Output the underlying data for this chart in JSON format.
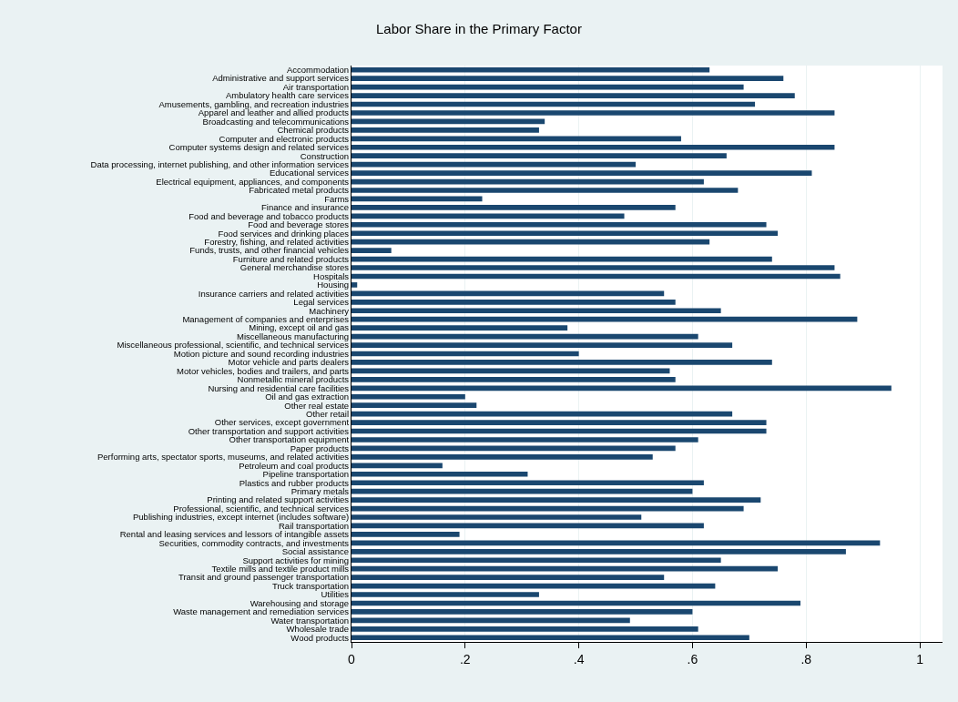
{
  "chart_data": {
    "type": "bar",
    "orientation": "horizontal",
    "title": "Labor Share in the Primary Factor",
    "color": "#1a476f",
    "categories": [
      "Accommodation",
      "Administrative and support services",
      "Air transportation",
      "Ambulatory health care services",
      "Amusements, gambling, and recreation industries",
      "Apparel and leather and allied products",
      "Broadcasting and telecommunications",
      "Chemical products",
      "Computer and electronic products",
      "Computer systems design and related services",
      "Construction",
      "Data processing, internet publishing, and other information services",
      "Educational services",
      "Electrical equipment, appliances, and components",
      "Fabricated metal products",
      "Farms",
      "Finance and insurance",
      "Food and beverage and tobacco products",
      "Food and beverage stores",
      "Food services and drinking places",
      "Forestry, fishing, and related activities",
      "Funds, trusts, and other financial vehicles",
      "Furniture and related products",
      "General merchandise stores",
      "Hospitals",
      "Housing",
      "Insurance carriers and related activities",
      "Legal services",
      "Machinery",
      "Management of companies and enterprises",
      "Mining, except oil and gas",
      "Miscellaneous manufacturing",
      "Miscellaneous professional, scientific, and technical services",
      "Motion picture and sound recording industries",
      "Motor vehicle and parts dealers",
      "Motor vehicles, bodies and trailers, and parts",
      "Nonmetallic mineral products",
      "Nursing and residential care facilities",
      "Oil and gas extraction",
      "Other real estate",
      "Other retail",
      "Other services, except government",
      "Other transportation and support activities",
      "Other transportation equipment",
      "Paper products",
      "Performing arts, spectator sports, museums, and related activities",
      "Petroleum and coal products",
      "Pipeline transportation",
      "Plastics and rubber products",
      "Primary metals",
      "Printing and related support activities",
      "Professional, scientific, and technical services",
      "Publishing industries, except internet (includes software)",
      "Rail transportation",
      "Rental and leasing services and lessors of intangible assets",
      "Securities, commodity contracts, and investments",
      "Social assistance",
      "Support activities for mining",
      "Textile mills and textile product mills",
      "Transit and ground passenger transportation",
      "Truck transportation",
      "Utilities",
      "Warehousing and storage",
      "Waste management and remediation services",
      "Water transportation",
      "Wholesale trade",
      "Wood products"
    ],
    "values": [
      0.63,
      0.76,
      0.69,
      0.78,
      0.71,
      0.85,
      0.34,
      0.33,
      0.58,
      0.85,
      0.66,
      0.5,
      0.81,
      0.62,
      0.68,
      0.23,
      0.57,
      0.48,
      0.73,
      0.75,
      0.63,
      0.07,
      0.74,
      0.85,
      0.86,
      0.01,
      0.55,
      0.57,
      0.65,
      0.89,
      0.38,
      0.61,
      0.67,
      0.4,
      0.74,
      0.56,
      0.57,
      0.95,
      0.2,
      0.22,
      0.67,
      0.73,
      0.73,
      0.61,
      0.57,
      0.53,
      0.16,
      0.31,
      0.62,
      0.6,
      0.72,
      0.69,
      0.51,
      0.62,
      0.19,
      0.93,
      0.87,
      0.65,
      0.75,
      0.55,
      0.64,
      0.33,
      0.79,
      0.6,
      0.49,
      0.61,
      0.7
    ],
    "xlim": [
      0,
      1.04
    ],
    "xticks": [
      0,
      {
        "value": 0.2,
        "label": ".2"
      },
      {
        "value": 0.4,
        "label": ".4"
      },
      {
        "value": 0.6,
        "label": ".6"
      },
      {
        "value": 0.8,
        "label": ".8"
      },
      1
    ],
    "grid": "x"
  }
}
